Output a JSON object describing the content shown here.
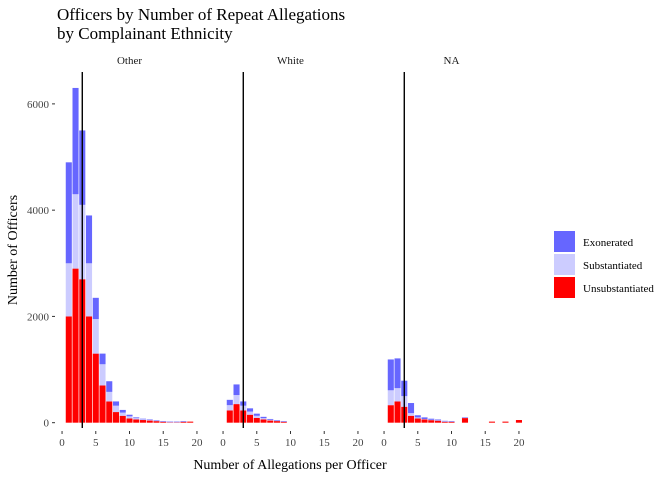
{
  "chart_data": {
    "type": "bar",
    "stacked": true,
    "title": [
      "Officers by Number of Repeat Allegations",
      "by Complainant Ethnicity"
    ],
    "xlabel": "Number of Allegations per Officer",
    "ylabel": "Number of Officers",
    "xlim": [
      -0.6,
      20.6
    ],
    "ylim": [
      -100,
      6600
    ],
    "x_ticks": [
      0,
      5,
      10,
      15,
      20
    ],
    "y_ticks": [
      0,
      2000,
      4000,
      6000
    ],
    "grid": false,
    "legend_position": "right",
    "vline_x": 3,
    "colors": {
      "Exonerated": "#6666ff",
      "Substantiated": "#ccccff",
      "Unsubstantiated": "#ff0000",
      "vline": "#000000"
    },
    "series_order": [
      "Unsubstantiated",
      "Substantiated",
      "Exonerated"
    ],
    "legend": [
      "Exonerated",
      "Substantiated",
      "Unsubstantiated"
    ],
    "x": [
      1,
      2,
      3,
      4,
      5,
      6,
      7,
      8,
      9,
      10,
      11,
      12,
      13,
      14,
      15,
      16,
      17,
      18,
      19,
      20
    ],
    "panels": [
      {
        "label": "Other",
        "series": [
          {
            "name": "Unsubstantiated",
            "values": [
              2000,
              2900,
              2700,
              2000,
              1300,
              700,
              400,
              200,
              130,
              80,
              60,
              50,
              40,
              30,
              20,
              10,
              10,
              20,
              20,
              0
            ]
          },
          {
            "name": "Substantiated",
            "values": [
              1000,
              1400,
              1400,
              1000,
              650,
              400,
              180,
              120,
              60,
              40,
              25,
              15,
              10,
              8,
              5,
              5,
              5,
              5,
              0,
              0
            ]
          },
          {
            "name": "Exonerated",
            "values": [
              1900,
              2000,
              1400,
              900,
              400,
              200,
              200,
              80,
              50,
              30,
              15,
              10,
              10,
              8,
              5,
              5,
              5,
              5,
              0,
              0
            ]
          }
        ]
      },
      {
        "label": "White",
        "series": [
          {
            "name": "Unsubstantiated",
            "values": [
              230,
              350,
              230,
              150,
              90,
              60,
              40,
              30,
              20,
              0,
              0,
              0,
              0,
              0,
              0,
              0,
              0,
              0,
              0,
              0
            ]
          },
          {
            "name": "Substantiated",
            "values": [
              100,
              170,
              90,
              60,
              40,
              25,
              15,
              10,
              5,
              0,
              0,
              0,
              0,
              0,
              0,
              0,
              0,
              0,
              0,
              0
            ]
          },
          {
            "name": "Exonerated",
            "values": [
              100,
              200,
              80,
              60,
              40,
              25,
              15,
              10,
              5,
              0,
              0,
              0,
              0,
              0,
              0,
              0,
              0,
              0,
              0,
              0
            ]
          }
        ]
      },
      {
        "label": "NA",
        "series": [
          {
            "name": "Unsubstantiated",
            "values": [
              330,
              400,
              300,
              130,
              80,
              60,
              50,
              40,
              20,
              20,
              0,
              90,
              0,
              0,
              0,
              20,
              0,
              20,
              0,
              50
            ]
          },
          {
            "name": "Substantiated",
            "values": [
              280,
              250,
              200,
              50,
              20,
              10,
              5,
              5,
              5,
              5,
              0,
              5,
              0,
              0,
              0,
              0,
              0,
              0,
              0,
              0
            ]
          },
          {
            "name": "Exonerated",
            "values": [
              580,
              560,
              290,
              190,
              40,
              30,
              20,
              15,
              10,
              5,
              0,
              5,
              0,
              0,
              0,
              0,
              0,
              0,
              0,
              0
            ]
          }
        ]
      }
    ]
  }
}
